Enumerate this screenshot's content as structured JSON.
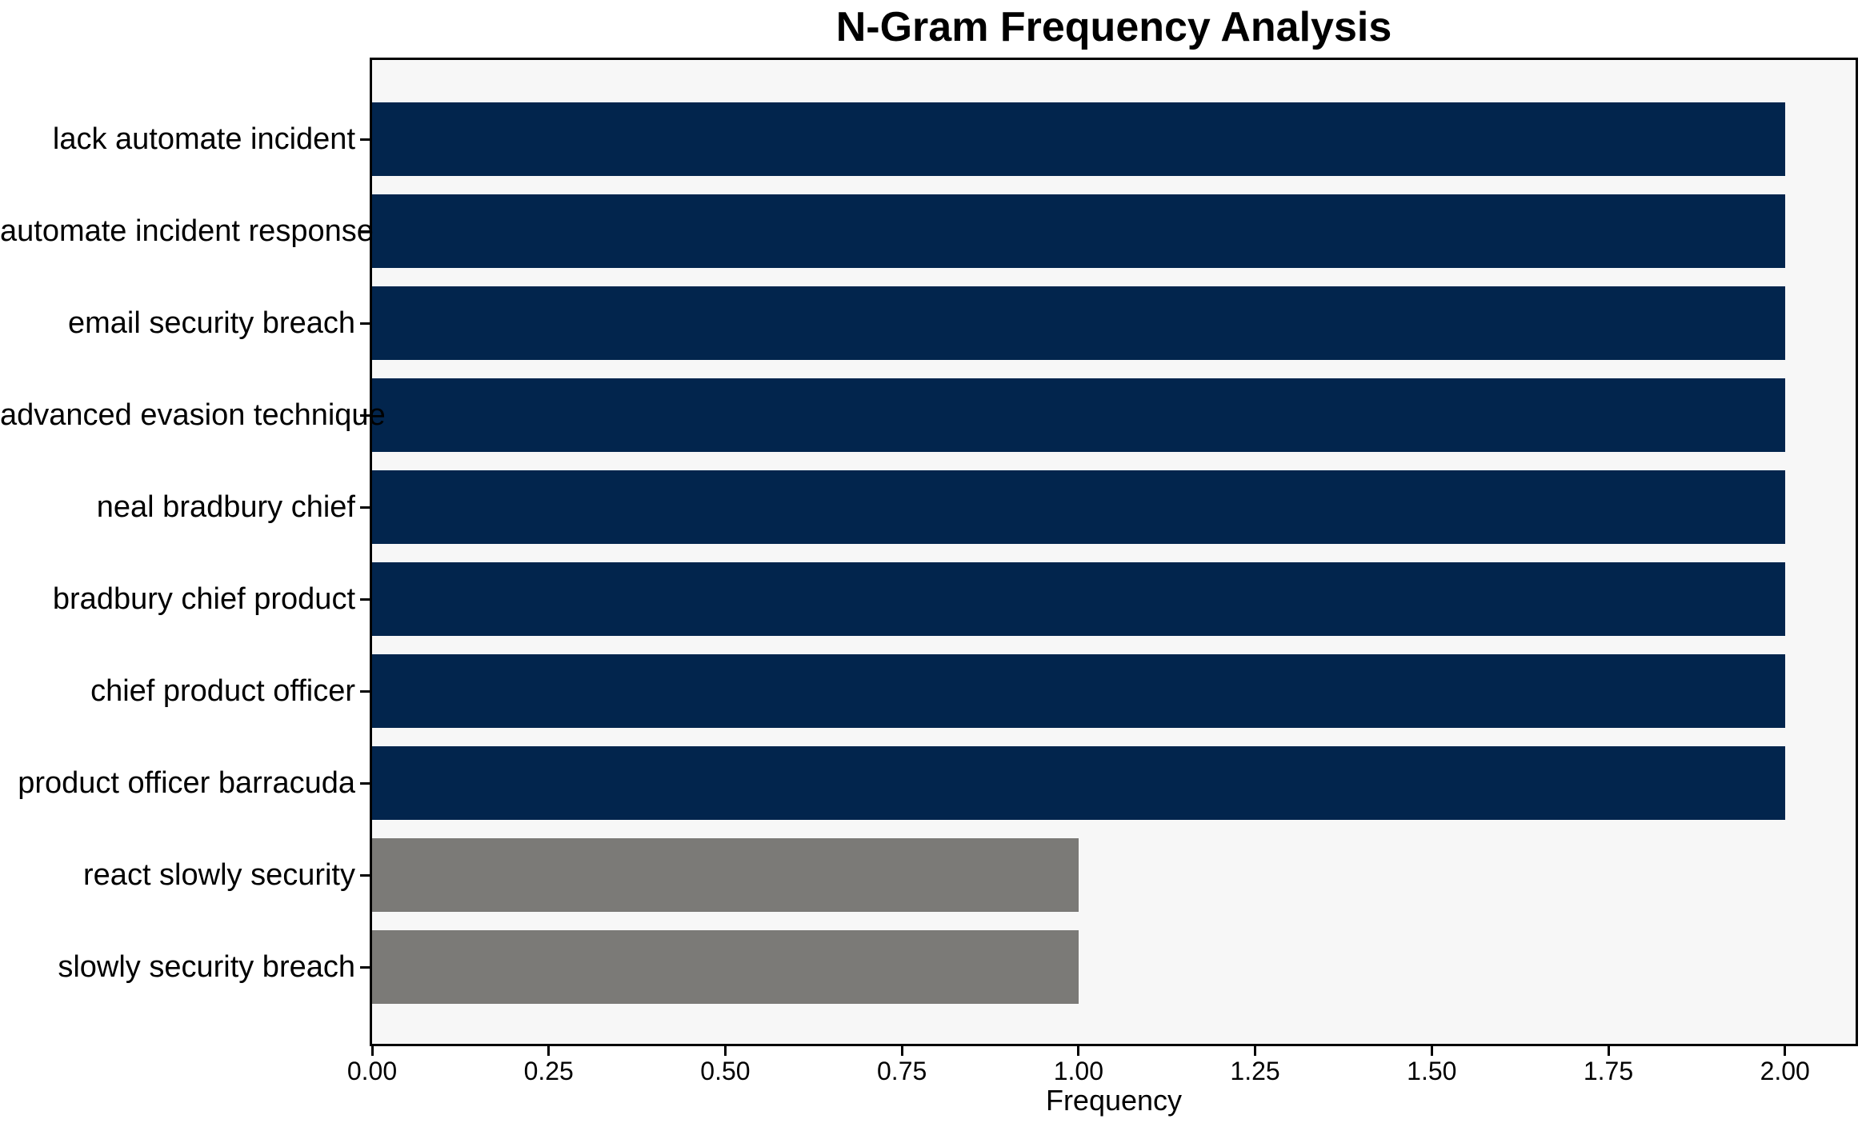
{
  "chart_data": {
    "type": "bar",
    "orientation": "horizontal",
    "title": "N-Gram Frequency Analysis",
    "xlabel": "Frequency",
    "ylabel": "",
    "categories": [
      "lack automate incident",
      "automate incident response",
      "email security breach",
      "advanced evasion technique",
      "neal bradbury chief",
      "bradbury chief product",
      "chief product officer",
      "product officer barracuda",
      "react slowly security",
      "slowly security breach"
    ],
    "values": [
      2,
      2,
      2,
      2,
      2,
      2,
      2,
      2,
      1,
      1
    ],
    "bar_colors": [
      "#02254d",
      "#02254d",
      "#02254d",
      "#02254d",
      "#02254d",
      "#02254d",
      "#02254d",
      "#02254d",
      "#7b7a77",
      "#7b7a77"
    ],
    "xlim": [
      0,
      2.1
    ],
    "xticks": {
      "values": [
        0,
        0.25,
        0.5,
        0.75,
        1.0,
        1.25,
        1.5,
        1.75,
        2.0
      ],
      "labels": [
        "0.00",
        "0.25",
        "0.50",
        "0.75",
        "1.00",
        "1.25",
        "1.50",
        "1.75",
        "2.00"
      ]
    },
    "grid": false,
    "legend": "none",
    "colors": {
      "bar_primary": "#02254d",
      "bar_secondary": "#7b7a77",
      "plot_background": "#f7f7f7",
      "figure_background": "#ffffff",
      "axis": "#000000",
      "text": "#000000"
    }
  }
}
